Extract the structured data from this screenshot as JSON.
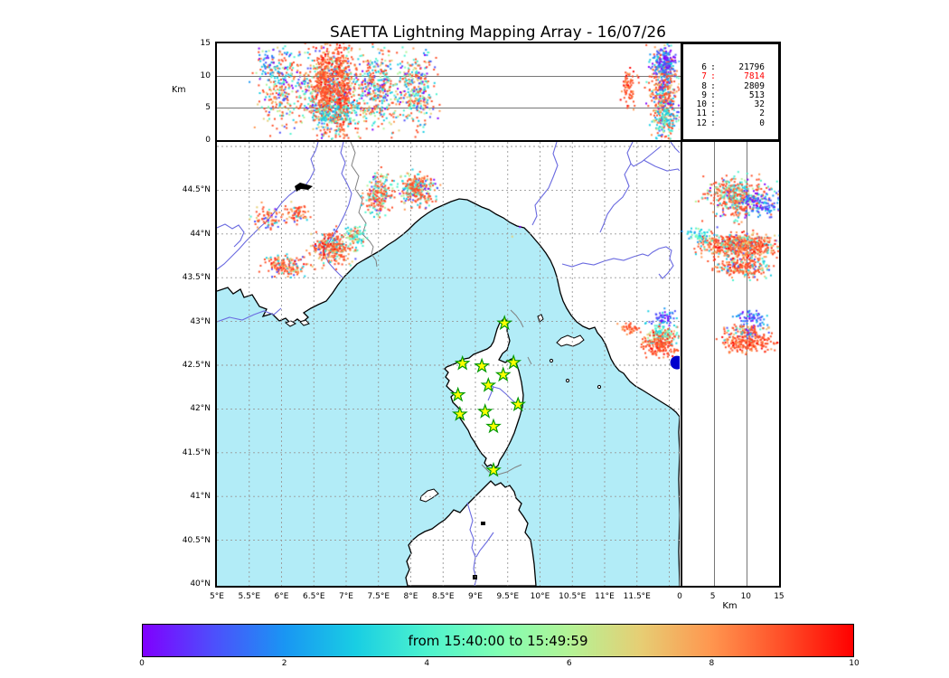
{
  "title": "SAETTA Lightning Mapping Array - 16/07/26",
  "km_label_top": "Km",
  "km_label_right": "Km",
  "legend": {
    "rows": [
      {
        "level": "6",
        "value": "21796",
        "color": "#000000"
      },
      {
        "level": "7",
        "value": "7814",
        "color": "#ff0000"
      },
      {
        "level": "8",
        "value": "2809",
        "color": "#000000"
      },
      {
        "level": "9",
        "value": "513",
        "color": "#000000"
      },
      {
        "level": "10",
        "value": "32",
        "color": "#000000"
      },
      {
        "level": "11",
        "value": "2",
        "color": "#000000"
      },
      {
        "level": "12",
        "value": "0",
        "color": "#000000"
      }
    ]
  },
  "colorbar": {
    "label": "from 15:40:00 to 15:49:59",
    "range": [
      0,
      10
    ],
    "ticks": [
      {
        "label": "0",
        "v": 0
      },
      {
        "label": "2",
        "v": 2
      },
      {
        "label": "4",
        "v": 4
      },
      {
        "label": "6",
        "v": 6
      },
      {
        "label": "8",
        "v": 8
      },
      {
        "label": "10",
        "v": 10
      }
    ],
    "gradient_stops": [
      "#8000ff 0%",
      "#4d4ffc 10%",
      "#1996f3 20%",
      "#19cee3 30%",
      "#4df3ce 40%",
      "#80ffb4 50%",
      "#b3f396 60%",
      "#e6ce74 70%",
      "#ff964f 80%",
      "#ff4f28 90%",
      "#ff0000 100%"
    ]
  },
  "chart_data": {
    "type": "scatter",
    "title": "SAETTA Lightning Mapping Array - 16/07/26",
    "time_window": {
      "from": "15:40:00",
      "to": "15:49:59"
    },
    "colormap": {
      "name": "rainbow",
      "range": [
        0,
        10
      ],
      "unit": "minutes"
    },
    "palette": [
      "#8000ff",
      "#4d4ffc",
      "#1996f3",
      "#19cee3",
      "#4df3ce",
      "#80ffb4",
      "#b3f396",
      "#e6ce74",
      "#ff964f",
      "#ff4f28",
      "#ff0000"
    ],
    "sea_color": "#b2ecf7",
    "station_marker_fill": "#ffff00",
    "station_marker_stroke": "#009900",
    "big_dot": {
      "lon": 12.12,
      "lat": 42.53,
      "color": "#0000cd"
    },
    "axes": {
      "map_x": [
        {
          "label": "5°E",
          "lon": 5
        },
        {
          "label": "5.5°E",
          "lon": 5.5
        },
        {
          "label": "6°E",
          "lon": 6
        },
        {
          "label": "6.5°E",
          "lon": 6.5
        },
        {
          "label": "7°E",
          "lon": 7
        },
        {
          "label": "7.5°E",
          "lon": 7.5
        },
        {
          "label": "8°E",
          "lon": 8
        },
        {
          "label": "8.5°E",
          "lon": 8.5
        },
        {
          "label": "9°E",
          "lon": 9
        },
        {
          "label": "9.5°E",
          "lon": 9.5
        },
        {
          "label": "10°E",
          "lon": 10
        },
        {
          "label": "10.5°E",
          "lon": 10.5
        },
        {
          "label": "11°E",
          "lon": 11
        },
        {
          "label": "11.5°E",
          "lon": 11.5
        }
      ],
      "map_y": [
        {
          "label": "44.5°N",
          "lat": 44.5
        },
        {
          "label": "44°N",
          "lat": 44
        },
        {
          "label": "43.5°N",
          "lat": 43.5
        },
        {
          "label": "43°N",
          "lat": 43
        },
        {
          "label": "42.5°N",
          "lat": 42.5
        },
        {
          "label": "42°N",
          "lat": 42
        },
        {
          "label": "41.5°N",
          "lat": 41.5
        },
        {
          "label": "41°N",
          "lat": 41
        },
        {
          "label": "40.5°N",
          "lat": 40.5
        },
        {
          "label": "40°N",
          "lat": 40
        }
      ],
      "top_y": [
        {
          "label": "15",
          "alt": 15
        },
        {
          "label": "10",
          "alt": 10
        },
        {
          "label": "5",
          "alt": 5
        },
        {
          "label": "0",
          "alt": 0
        }
      ],
      "right_x": [
        {
          "label": "0",
          "alt": 0
        },
        {
          "label": "5",
          "alt": 5
        },
        {
          "label": "10",
          "alt": 10
        },
        {
          "label": "15",
          "alt": 15
        }
      ],
      "lon_range": [
        5,
        12.16
      ],
      "lat_range": [
        40.02,
        45.07
      ],
      "alt_range_km": [
        0,
        15
      ]
    },
    "stations": [
      {
        "lon": 9.45,
        "lat": 42.98
      },
      {
        "lon": 8.8,
        "lat": 42.52
      },
      {
        "lon": 9.1,
        "lat": 42.49
      },
      {
        "lon": 9.59,
        "lat": 42.53
      },
      {
        "lon": 9.43,
        "lat": 42.39
      },
      {
        "lon": 9.2,
        "lat": 42.27
      },
      {
        "lon": 8.73,
        "lat": 42.16
      },
      {
        "lon": 9.66,
        "lat": 42.05
      },
      {
        "lon": 9.15,
        "lat": 41.97
      },
      {
        "lon": 8.76,
        "lat": 41.94
      },
      {
        "lon": 9.28,
        "lat": 41.8
      },
      {
        "lon": 9.28,
        "lat": 41.3
      }
    ],
    "mixes": {
      "orange_core": [
        [
          9,
          0.5
        ],
        [
          8,
          0.15
        ],
        [
          10,
          0.08
        ],
        [
          7,
          0.07
        ],
        [
          4,
          0.08
        ],
        [
          3,
          0.07
        ],
        [
          1,
          0.05
        ]
      ],
      "orange_pure": [
        [
          9,
          0.68
        ],
        [
          8,
          0.22
        ],
        [
          10,
          0.1
        ]
      ],
      "multi": [
        [
          9,
          0.3
        ],
        [
          3,
          0.14
        ],
        [
          4,
          0.13
        ],
        [
          8,
          0.09
        ],
        [
          7,
          0.08
        ],
        [
          1,
          0.08
        ],
        [
          0,
          0.06
        ],
        [
          6,
          0.06
        ],
        [
          2,
          0.04
        ],
        [
          5,
          0.02
        ]
      ],
      "cyan": [
        [
          3,
          0.35
        ],
        [
          4,
          0.3
        ],
        [
          2,
          0.15
        ],
        [
          6,
          0.1
        ],
        [
          5,
          0.1
        ]
      ],
      "blue": [
        [
          1,
          0.45
        ],
        [
          0,
          0.22
        ],
        [
          2,
          0.2
        ],
        [
          3,
          0.13
        ]
      ],
      "orange_blue": [
        [
          9,
          0.45
        ],
        [
          8,
          0.1
        ],
        [
          1,
          0.14
        ],
        [
          3,
          0.1
        ],
        [
          4,
          0.08
        ],
        [
          0,
          0.06
        ],
        [
          7,
          0.07
        ]
      ],
      "green_mix": [
        [
          3,
          0.28
        ],
        [
          4,
          0.28
        ],
        [
          6,
          0.16
        ],
        [
          9,
          0.16
        ],
        [
          7,
          0.12
        ]
      ],
      "orange_green": [
        [
          9,
          0.45
        ],
        [
          4,
          0.18
        ],
        [
          3,
          0.12
        ],
        [
          8,
          0.1
        ],
        [
          6,
          0.08
        ],
        [
          1,
          0.04
        ],
        [
          0,
          0.03
        ]
      ]
    },
    "clusters": [
      {
        "panel": "top",
        "x": 6.01,
        "y": 8.4,
        "sx": 0.2,
        "sy": 3.1,
        "n": 330,
        "mix": "multi"
      },
      {
        "panel": "top",
        "x": 5.78,
        "y": 12.2,
        "sx": 0.07,
        "sy": 1.1,
        "n": 30,
        "mix": "blue"
      },
      {
        "panel": "top",
        "x": 6.79,
        "y": 7.7,
        "sx": 0.22,
        "sy": 3.6,
        "n": 650,
        "mix": "multi"
      },
      {
        "panel": "top",
        "x": 6.65,
        "y": 8.4,
        "sx": 0.07,
        "sy": 3.5,
        "n": 300,
        "mix": "orange_pure"
      },
      {
        "panel": "top",
        "x": 6.93,
        "y": 7.7,
        "sx": 0.08,
        "sy": 3.9,
        "n": 300,
        "mix": "orange_pure"
      },
      {
        "panel": "top",
        "x": 6.79,
        "y": 4.2,
        "sx": 0.2,
        "sy": 1.1,
        "n": 120,
        "mix": "cyan"
      },
      {
        "panel": "top",
        "x": 7.49,
        "y": 7.7,
        "sx": 0.17,
        "sy": 2.8,
        "n": 380,
        "mix": "multi"
      },
      {
        "panel": "top",
        "x": 8.08,
        "y": 7.7,
        "sx": 0.14,
        "sy": 2.8,
        "n": 320,
        "mix": "multi"
      },
      {
        "panel": "top",
        "x": 11.38,
        "y": 8.1,
        "sx": 0.06,
        "sy": 1.8,
        "n": 70,
        "mix": "orange_pure"
      },
      {
        "panel": "top",
        "x": 11.92,
        "y": 7.7,
        "sx": 0.11,
        "sy": 3.4,
        "n": 520,
        "mix": "orange_blue"
      },
      {
        "panel": "top",
        "x": 11.92,
        "y": 11.9,
        "sx": 0.1,
        "sy": 1.1,
        "n": 130,
        "mix": "blue"
      },
      {
        "panel": "top",
        "x": 11.92,
        "y": 3.5,
        "sx": 0.1,
        "sy": 1.3,
        "n": 90,
        "mix": "cyan"
      },
      {
        "panel": "map",
        "x": 5.81,
        "y": 44.19,
        "sx": 0.1,
        "sy": 0.07,
        "n": 80,
        "mix": "orange_blue"
      },
      {
        "panel": "map",
        "x": 6.23,
        "y": 44.23,
        "sx": 0.1,
        "sy": 0.05,
        "n": 70,
        "mix": "orange_core"
      },
      {
        "panel": "map",
        "x": 7.5,
        "y": 44.45,
        "sx": 0.11,
        "sy": 0.11,
        "n": 220,
        "mix": "orange_green"
      },
      {
        "panel": "map",
        "x": 8.09,
        "y": 44.5,
        "sx": 0.13,
        "sy": 0.09,
        "n": 280,
        "mix": "orange_green"
      },
      {
        "panel": "map",
        "x": 6.79,
        "y": 43.84,
        "sx": 0.15,
        "sy": 0.09,
        "n": 300,
        "mix": "orange_core"
      },
      {
        "panel": "map",
        "x": 7.13,
        "y": 43.96,
        "sx": 0.08,
        "sy": 0.07,
        "n": 90,
        "mix": "green_mix"
      },
      {
        "panel": "map",
        "x": 6.06,
        "y": 43.64,
        "sx": 0.17,
        "sy": 0.06,
        "n": 160,
        "mix": "orange_core"
      },
      {
        "panel": "map",
        "x": 11.39,
        "y": 42.92,
        "sx": 0.07,
        "sy": 0.03,
        "n": 40,
        "mix": "orange_pure"
      },
      {
        "panel": "map",
        "x": 11.92,
        "y": 43.03,
        "sx": 0.1,
        "sy": 0.05,
        "n": 60,
        "mix": "blue"
      },
      {
        "panel": "map",
        "x": 11.88,
        "y": 42.85,
        "sx": 0.13,
        "sy": 0.06,
        "n": 140,
        "mix": "green_mix"
      },
      {
        "panel": "map",
        "x": 11.85,
        "y": 42.72,
        "sx": 0.13,
        "sy": 0.06,
        "n": 150,
        "mix": "orange_pure"
      },
      {
        "panel": "right",
        "x": 8.6,
        "y": 44.42,
        "sx": 2.2,
        "sy": 0.11,
        "n": 450,
        "mix": "orange_green"
      },
      {
        "panel": "right",
        "x": 12.0,
        "y": 44.35,
        "sx": 1.4,
        "sy": 0.08,
        "n": 120,
        "mix": "blue"
      },
      {
        "panel": "right",
        "x": 9.3,
        "y": 43.86,
        "sx": 2.7,
        "sy": 0.07,
        "n": 650,
        "mix": "orange_core"
      },
      {
        "panel": "right",
        "x": 9.5,
        "y": 43.61,
        "sx": 2.2,
        "sy": 0.05,
        "n": 220,
        "mix": "orange_core"
      },
      {
        "panel": "right",
        "x": 3.1,
        "y": 43.99,
        "sx": 1.1,
        "sy": 0.04,
        "n": 50,
        "mix": "cyan"
      },
      {
        "panel": "right",
        "x": 10.9,
        "y": 43.04,
        "sx": 1.1,
        "sy": 0.05,
        "n": 70,
        "mix": "blue"
      },
      {
        "panel": "right",
        "x": 10.0,
        "y": 42.88,
        "sx": 1.6,
        "sy": 0.04,
        "n": 110,
        "mix": "orange_blue"
      },
      {
        "panel": "right",
        "x": 10.2,
        "y": 42.75,
        "sx": 1.9,
        "sy": 0.05,
        "n": 190,
        "mix": "orange_pure"
      }
    ],
    "extras": [
      {
        "panel": "map",
        "x": 7.42,
        "y": 44.65,
        "c": 0
      },
      {
        "panel": "map",
        "x": 9.57,
        "y": 43.97,
        "c": 7
      },
      {
        "panel": "map",
        "x": 9.69,
        "y": 44.08,
        "c": 0
      }
    ]
  }
}
